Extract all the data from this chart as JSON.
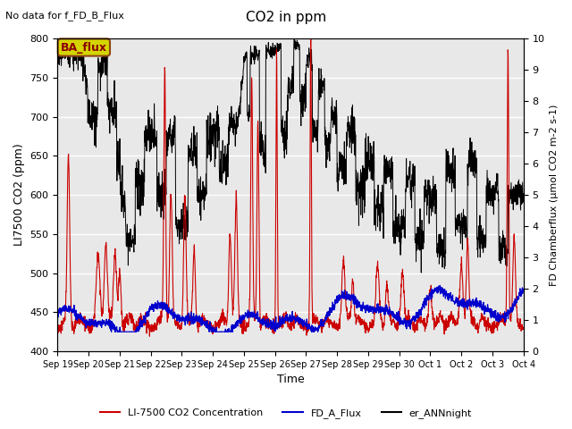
{
  "title": "CO2 in ppm",
  "top_left_text": "No data for f_FD_B_Flux",
  "ylabel_left": "LI7500 CO2 (ppm)",
  "ylabel_right": "FD Chamberflux (μmol CO2 m-2 s-1)",
  "xlabel": "Time",
  "ylim_left": [
    400,
    800
  ],
  "ylim_right": [
    0.0,
    10.0
  ],
  "yticks_left": [
    400,
    450,
    500,
    550,
    600,
    650,
    700,
    750,
    800
  ],
  "yticks_right": [
    0.0,
    1.0,
    2.0,
    3.0,
    4.0,
    5.0,
    6.0,
    7.0,
    8.0,
    9.0,
    10.0
  ],
  "xtick_labels": [
    "Sep 19",
    "Sep 20",
    "Sep 21",
    "Sep 22",
    "Sep 23",
    "Sep 24",
    "Sep 25",
    "Sep 26",
    "Sep 27",
    "Sep 28",
    "Sep 29",
    "Sep 30",
    "Oct 1",
    "Oct 2",
    "Oct 3",
    "Oct 4"
  ],
  "legend_entries": [
    {
      "label": "LI-7500 CO2 Concentration",
      "color": "#cc0000",
      "lw": 1.5
    },
    {
      "label": "FD_A_Flux",
      "color": "#0000cc",
      "lw": 1.5
    },
    {
      "label": "er_ANNnight",
      "color": "#000000",
      "lw": 1.5
    }
  ],
  "ba_flux_box": {
    "text": "BA_flux",
    "facecolor": "#d4d400",
    "edgecolor": "#8B4513",
    "textcolor": "#8B0000"
  },
  "background_color": "#e8e8e8",
  "grid_color": "#ffffff",
  "fig_background": "#ffffff"
}
